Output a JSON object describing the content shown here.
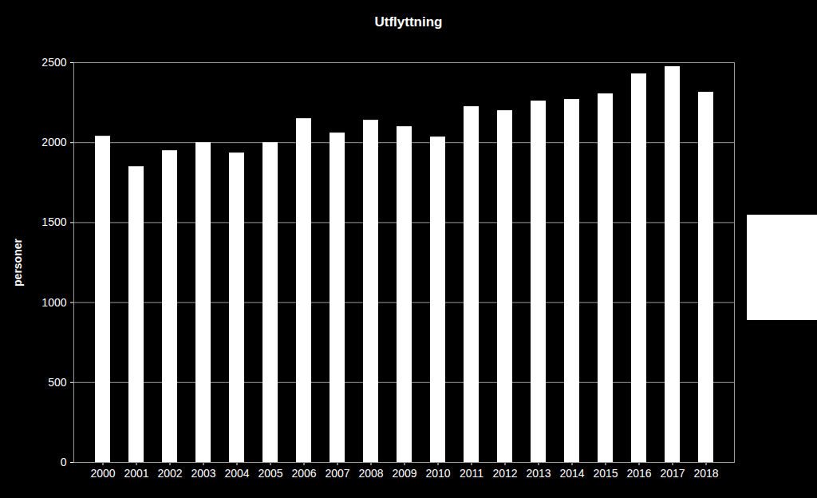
{
  "chart_data": {
    "type": "bar",
    "title": "Utflyttning",
    "y_label": "personer",
    "categories": [
      "2000",
      "2001",
      "2002",
      "2003",
      "2004",
      "2005",
      "2006",
      "2007",
      "2008",
      "2009",
      "2010",
      "2011",
      "2012",
      "2013",
      "2014",
      "2015",
      "2016",
      "2017",
      "2018"
    ],
    "values": [
      2040,
      1850,
      1950,
      2000,
      1935,
      2000,
      2150,
      2060,
      2140,
      2100,
      2035,
      2225,
      2200,
      2260,
      2270,
      2305,
      2430,
      2475,
      2315
    ],
    "color": "#ffffff",
    "ylim": [
      0,
      2500
    ],
    "yticks": [
      0,
      500,
      1000,
      1500,
      2000,
      2500
    ],
    "grid": true
  }
}
